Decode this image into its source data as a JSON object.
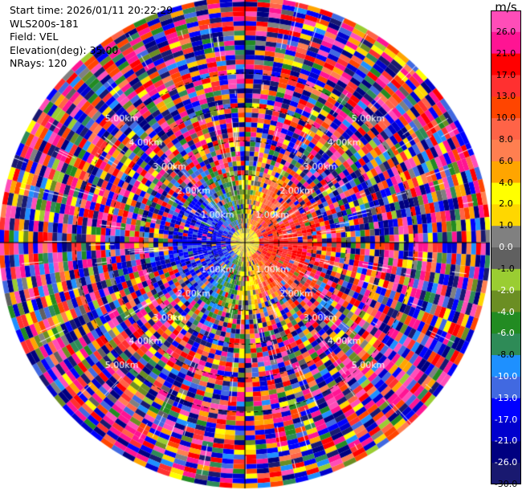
{
  "info": {
    "start_time": "Start time: 2026/01/11 20:22:29",
    "radar": "WLS200s-181",
    "field": "Field: VEL",
    "elevation": "Elevation(deg): 35.00",
    "nrays": "NRays: 120"
  },
  "chart_data": {
    "type": "heatmap",
    "projection": "polar-ppi",
    "field": "VEL",
    "unit": "m/s",
    "nrays": 120,
    "range_rings_km": [
      "1.00km",
      "2.00km",
      "3.00km",
      "4.00km",
      "5.00km"
    ],
    "ring_values_km": [
      1,
      2,
      3,
      4,
      5
    ],
    "max_range_km": 5.7,
    "colorbar": {
      "label": "m/s",
      "vmin": -30,
      "vmax": 30,
      "tick_labels": [
        "26.0",
        "21.0",
        "17.0",
        "13.0",
        "10.0",
        "8.0",
        "6.0",
        "4.0",
        "2.0",
        "1.0",
        "0.0",
        "-1.0",
        "-2.0",
        "-4.0",
        "-6.0",
        "-8.0",
        "-10.0",
        "-13.0",
        "-17.0",
        "-21.0",
        "-26.0",
        "-30.0"
      ],
      "bins_top_to_bottom": [
        {
          "min": 26,
          "max": 30,
          "color": "#ff4db8"
        },
        {
          "min": 21,
          "max": 26,
          "color": "#ff1493"
        },
        {
          "min": 17,
          "max": 21,
          "color": "#ff0000"
        },
        {
          "min": 13,
          "max": 17,
          "color": "#ff3030"
        },
        {
          "min": 10,
          "max": 13,
          "color": "#ff4500"
        },
        {
          "min": 8,
          "max": 10,
          "color": "#ff6347"
        },
        {
          "min": 6,
          "max": 8,
          "color": "#ff7f50"
        },
        {
          "min": 4,
          "max": 6,
          "color": "#ffa500"
        },
        {
          "min": 2,
          "max": 4,
          "color": "#ffff00"
        },
        {
          "min": 1,
          "max": 2,
          "color": "#ffd700"
        },
        {
          "min": 0,
          "max": 1,
          "color": "#808080"
        },
        {
          "min": -1,
          "max": 0,
          "color": "#606060"
        },
        {
          "min": -2,
          "max": -1,
          "color": "#9acd32"
        },
        {
          "min": -4,
          "max": -2,
          "color": "#6b8e23"
        },
        {
          "min": -6,
          "max": -4,
          "color": "#228b22"
        },
        {
          "min": -8,
          "max": -6,
          "color": "#2e8b57"
        },
        {
          "min": -10,
          "max": -8,
          "color": "#1e90ff"
        },
        {
          "min": -13,
          "max": -10,
          "color": "#4169e1"
        },
        {
          "min": -17,
          "max": -13,
          "color": "#0000ff"
        },
        {
          "min": -21,
          "max": -17,
          "color": "#0000cd"
        },
        {
          "min": -26,
          "max": -21,
          "color": "#000080"
        },
        {
          "min": -30,
          "max": -26,
          "color": "#191970"
        }
      ]
    },
    "pattern": {
      "near_field": "dipole: positive velocities (red/orange) on the east side, negative velocities (blue) on the west side, yellow near the center",
      "far_field": "noisy random velocities across the full scale"
    }
  }
}
